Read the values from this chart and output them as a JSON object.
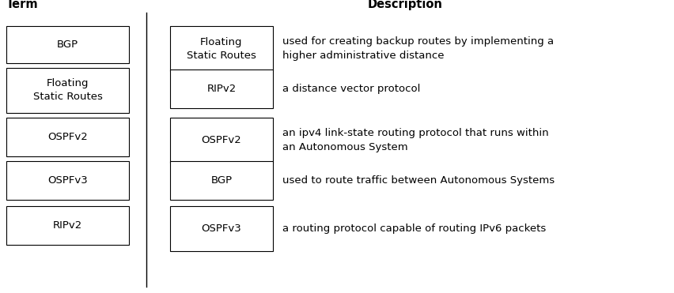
{
  "title_term": "Term",
  "title_desc": "Description",
  "left_terms": [
    "BGP",
    "Floating\nStatic Routes",
    "OSPFv2",
    "OSPFv3",
    "RIPv2"
  ],
  "right_terms": [
    "Floating\nStatic Routes",
    "RIPv2",
    "OSPFv2",
    "BGP",
    "OSPFv3"
  ],
  "descriptions": [
    "used for creating backup routes by implementing a\nhigher administrative distance",
    "a distance vector protocol",
    "an ipv4 link-state routing protocol that runs within\nan Autonomous System",
    "used to route traffic between Autonomous Systems",
    "a routing protocol capable of routing IPv6 packets"
  ],
  "bg_color": "#ffffff",
  "text_color": "#000000",
  "box_edge_color": "#000000",
  "divider_color": "#000000",
  "font_size": 9.5,
  "title_font_size": 10.5
}
